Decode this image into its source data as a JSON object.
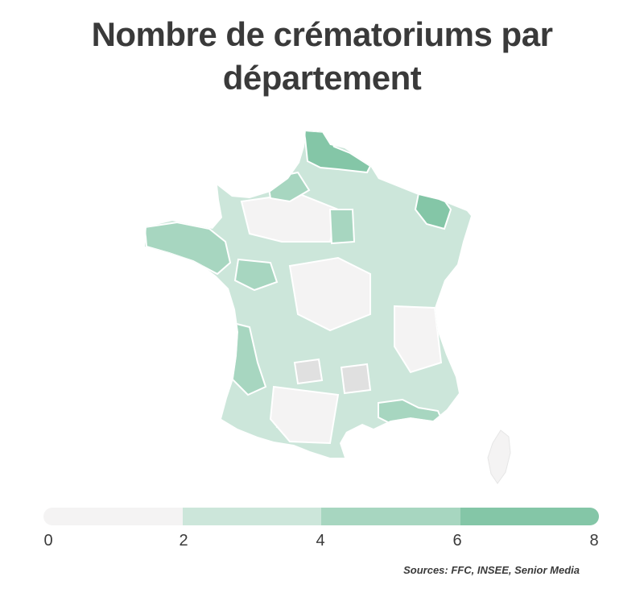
{
  "title": {
    "line1": "Nombre de crématoriums par",
    "line2": "département"
  },
  "legend": {
    "ticks": [
      "0",
      "2",
      "4",
      "6",
      "8"
    ],
    "colors": [
      "#f4f3f3",
      "#cce6da",
      "#a7d6c0",
      "#84c6a7"
    ]
  },
  "source": "Sources: FFC, INSEE, Senior Media",
  "map": {
    "palette": {
      "none": "#e0e0e0",
      "low": "#f4f3f3",
      "mid": "#cce6da",
      "high": "#a7d6c0",
      "top": "#84c6a7"
    }
  }
}
